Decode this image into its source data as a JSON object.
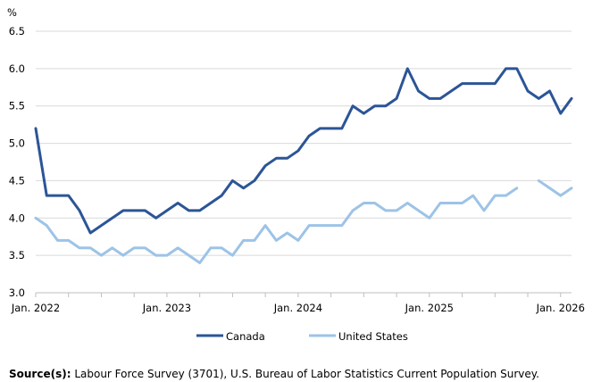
{
  "chart_data": {
    "type": "line",
    "ylabel": "%",
    "ylim": [
      3.0,
      6.5
    ],
    "yticks": [
      "3.0",
      "3.5",
      "4.0",
      "4.5",
      "5.0",
      "5.5",
      "6.0",
      "6.5"
    ],
    "xticks": [
      "Jan. 2022",
      "Jan. 2023",
      "Jan. 2024",
      "Jan. 2025",
      "Jan. 2026"
    ],
    "x_start": "2022-01",
    "x_end": "2026-01",
    "grid": true,
    "legend_position": "bottom",
    "series": [
      {
        "name": "Canada",
        "color": "#2b5596",
        "values": [
          5.2,
          4.3,
          4.3,
          4.3,
          4.1,
          3.8,
          3.9,
          4.0,
          4.1,
          4.1,
          4.1,
          4.0,
          4.1,
          4.2,
          4.1,
          4.1,
          4.2,
          4.3,
          4.5,
          4.4,
          4.5,
          4.7,
          4.8,
          4.8,
          4.9,
          5.1,
          5.2,
          5.2,
          5.2,
          5.5,
          5.4,
          5.5,
          5.5,
          5.6,
          6.0,
          5.7,
          5.6,
          5.6,
          5.7,
          5.8,
          5.8,
          5.8,
          5.8,
          6.0,
          6.0,
          5.7,
          5.6,
          5.7,
          5.4,
          5.6
        ]
      },
      {
        "name": "United States",
        "color": "#9dc3e6",
        "values": [
          4.0,
          3.9,
          3.7,
          3.7,
          3.6,
          3.6,
          3.5,
          3.6,
          3.5,
          3.6,
          3.6,
          3.5,
          3.5,
          3.6,
          3.5,
          3.4,
          3.6,
          3.6,
          3.5,
          3.7,
          3.7,
          3.9,
          3.7,
          3.8,
          3.7,
          3.9,
          3.9,
          3.9,
          3.9,
          4.1,
          4.2,
          4.2,
          4.1,
          4.1,
          4.2,
          4.1,
          4.0,
          4.2,
          4.2,
          4.2,
          4.3,
          4.1,
          4.3,
          4.3,
          4.4,
          null,
          4.5,
          4.4,
          4.3,
          4.4
        ]
      }
    ]
  },
  "source": {
    "label": "Source(s):",
    "text": " Labour Force Survey (3701), U.S. Bureau of Labor Statistics Current Population Survey."
  }
}
